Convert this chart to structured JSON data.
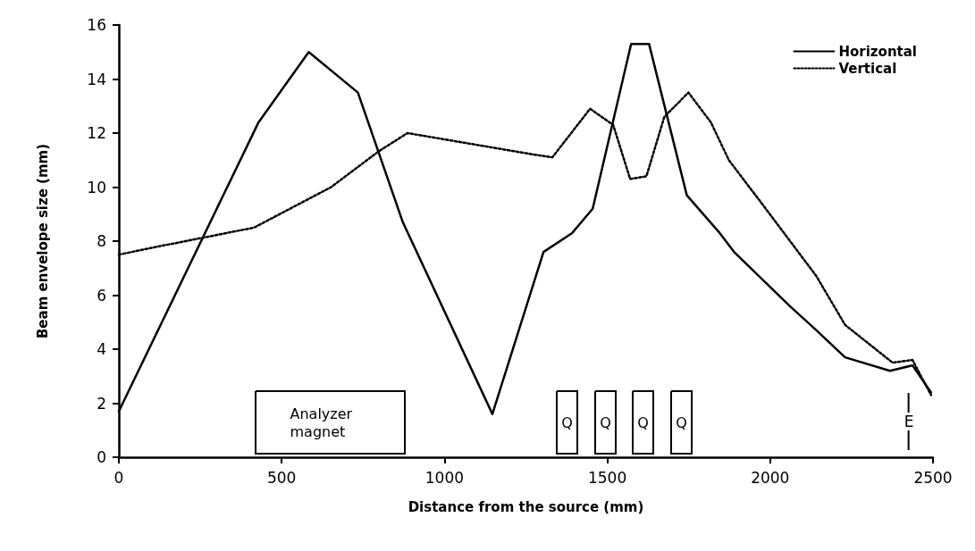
{
  "chart_data": {
    "type": "line",
    "xlabel": "Distance from the source (mm)",
    "ylabel": "Beam envelope size (mm)",
    "xlim": [
      0,
      2500
    ],
    "xticks": [
      0,
      500,
      1000,
      1500,
      2000,
      2500
    ],
    "ylim": [
      0,
      16
    ],
    "yticks": [
      0,
      2,
      4,
      6,
      8,
      10,
      12,
      14,
      16
    ],
    "grid": false,
    "legend": "top right",
    "marker": "none",
    "series": [
      {
        "name": "Horizontal",
        "color": "#000000",
        "line_style": "solid",
        "x": [
          0,
          429,
          583,
          734,
          872,
          1147,
          1304,
          1392,
          1455,
          1573,
          1628,
          1744,
          1845,
          1889,
          2060,
          2142,
          2230,
          2368,
          2437,
          2494
        ],
        "values": [
          1.7,
          12.4,
          15.0,
          13.5,
          8.7,
          1.6,
          7.6,
          8.3,
          9.2,
          15.3,
          15.3,
          9.7,
          8.3,
          7.6,
          5.6,
          4.7,
          3.7,
          3.2,
          3.4,
          2.4
        ]
      },
      {
        "name": "Vertical",
        "color": "#000000",
        "line_style": "dotted",
        "x": [
          0,
          121,
          415,
          652,
          795,
          886,
          1276,
          1331,
          1447,
          1518,
          1570,
          1620,
          1675,
          1749,
          1818,
          1873,
          1955,
          2142,
          2230,
          2376,
          2437,
          2494
        ],
        "values": [
          7.5,
          7.8,
          8.5,
          10.0,
          11.3,
          12.0,
          11.2,
          11.1,
          12.9,
          12.3,
          10.3,
          10.4,
          12.6,
          13.5,
          12.4,
          11.0,
          9.7,
          6.7,
          4.9,
          3.5,
          3.6,
          2.3
        ]
      }
    ],
    "annotations": [
      "Analyzer magnet",
      "Q",
      "Q",
      "Q",
      "Q"
    ],
    "ref_lines": [
      {
        "axis": "x",
        "value": 2426,
        "label": "E"
      }
    ]
  }
}
